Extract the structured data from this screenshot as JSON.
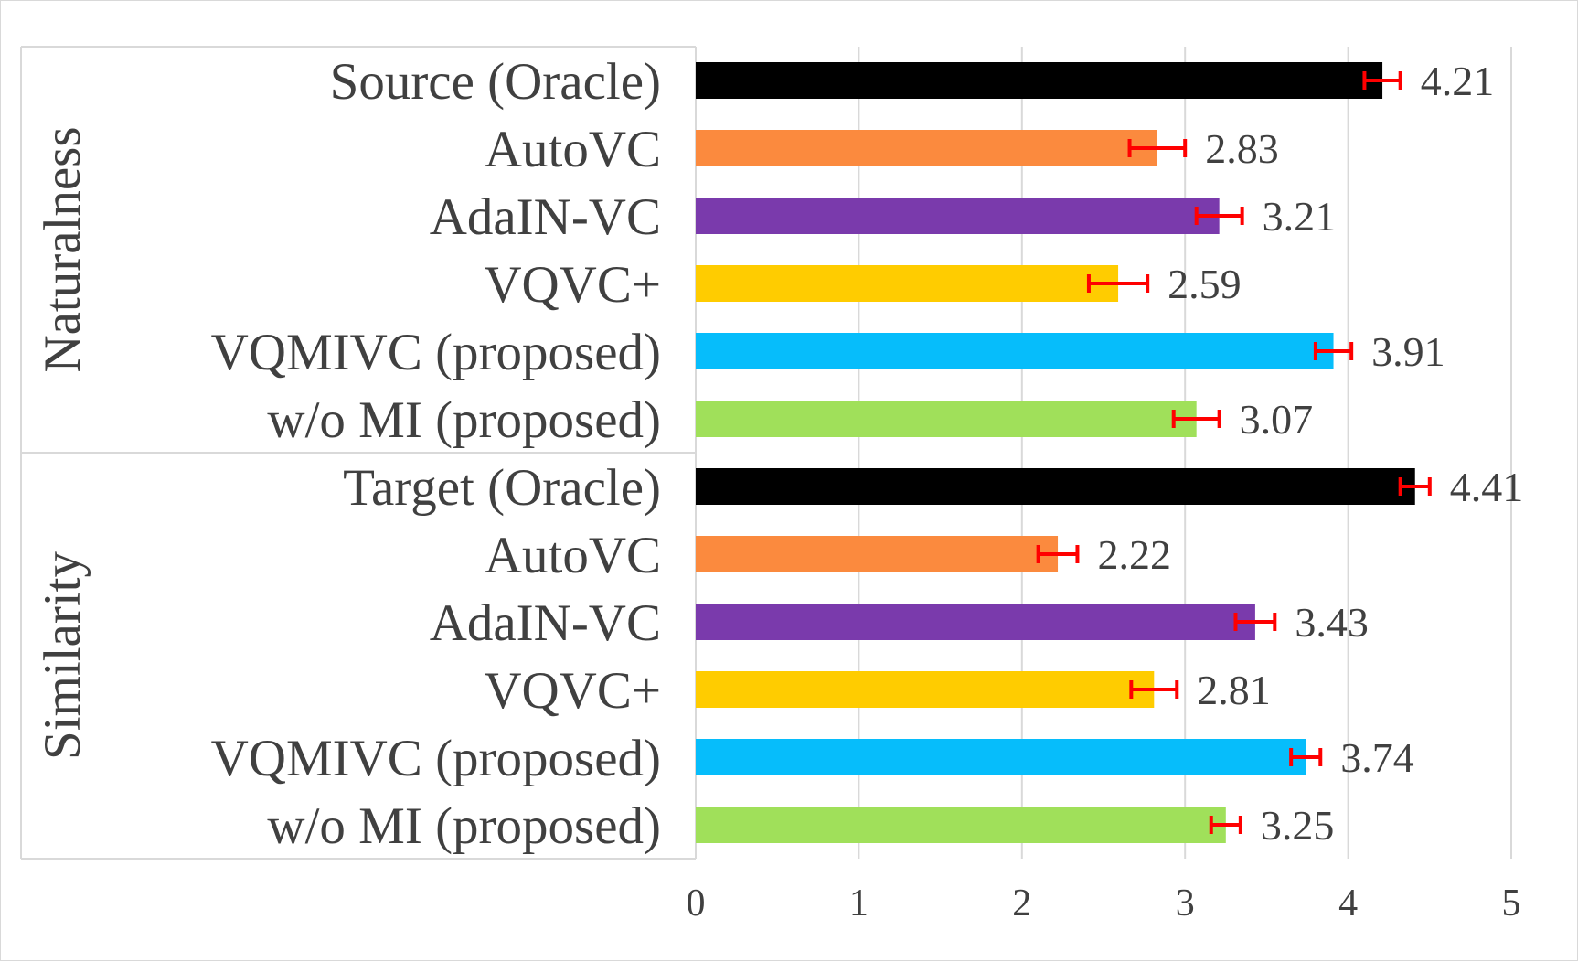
{
  "chart_data": {
    "type": "bar",
    "orientation": "horizontal",
    "title": "",
    "xlabel": "",
    "ylabel": "",
    "xlim": [
      0,
      5
    ],
    "x_ticks": [
      0,
      1,
      2,
      3,
      4,
      5
    ],
    "x_tick_labels": [
      "0",
      "1",
      "2",
      "3",
      "4",
      "5"
    ],
    "grid": "vertical",
    "error_bar_color": "#ff0000",
    "groups": [
      {
        "name": "Naturalness",
        "bars": [
          {
            "label": "Source (Oracle)",
            "value": 4.21,
            "value_label": "4.21",
            "error": 0.11,
            "color": "#000000"
          },
          {
            "label": "AutoVC",
            "value": 2.83,
            "value_label": "2.83",
            "error": 0.17,
            "color": "#fb8a3e"
          },
          {
            "label": "AdaIN-VC",
            "value": 3.21,
            "value_label": "3.21",
            "error": 0.14,
            "color": "#7a3aac"
          },
          {
            "label": "VQVC+",
            "value": 2.59,
            "value_label": "2.59",
            "error": 0.18,
            "color": "#ffcc00"
          },
          {
            "label": "VQMIVC (proposed)",
            "value": 3.91,
            "value_label": "3.91",
            "error": 0.11,
            "color": "#06bdfb"
          },
          {
            "label": "w/o MI (proposed)",
            "value": 3.07,
            "value_label": "3.07",
            "error": 0.14,
            "color": "#a0e05a"
          }
        ]
      },
      {
        "name": "Similarity",
        "bars": [
          {
            "label": "Target (Oracle)",
            "value": 4.41,
            "value_label": "4.41",
            "error": 0.09,
            "color": "#000000"
          },
          {
            "label": "AutoVC",
            "value": 2.22,
            "value_label": "2.22",
            "error": 0.12,
            "color": "#fb8a3e"
          },
          {
            "label": "AdaIN-VC",
            "value": 3.43,
            "value_label": "3.43",
            "error": 0.12,
            "color": "#7a3aac"
          },
          {
            "label": "VQVC+",
            "value": 2.81,
            "value_label": "2.81",
            "error": 0.14,
            "color": "#ffcc00"
          },
          {
            "label": "VQMIVC (proposed)",
            "value": 3.74,
            "value_label": "3.74",
            "error": 0.09,
            "color": "#06bdfb"
          },
          {
            "label": "w/o MI (proposed)",
            "value": 3.25,
            "value_label": "3.25",
            "error": 0.09,
            "color": "#a0e05a"
          }
        ]
      }
    ]
  }
}
